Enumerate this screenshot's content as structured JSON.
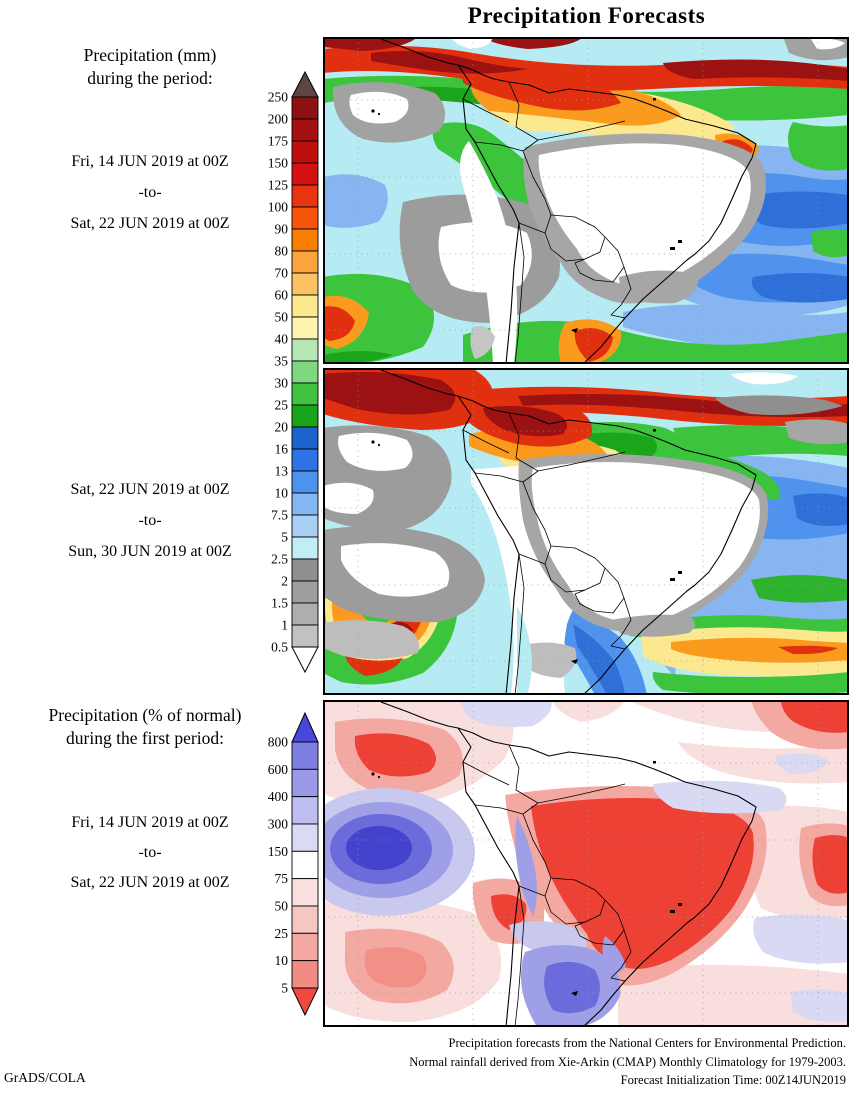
{
  "title": "Precipitation Forecasts",
  "left_column": {
    "period1": {
      "heading1": "Precipitation (mm)",
      "heading2": "during the period:",
      "date_from": "Fri, 14 JUN 2019 at 00Z",
      "separator": "-to-",
      "date_to": "Sat, 22 JUN 2019 at 00Z"
    },
    "period2": {
      "date_from": "Sat, 22 JUN 2019 at 00Z",
      "separator": "-to-",
      "date_to": "Sun, 30 JUN 2019 at 00Z"
    },
    "period3": {
      "heading1": "Precipitation (% of normal)",
      "heading2": "during the first period:",
      "date_from": "Fri, 14 JUN 2019 at 00Z",
      "separator": "-to-",
      "date_to": "Sat, 22 JUN 2019 at 00Z"
    }
  },
  "colorbar_mm": {
    "unit": "mm",
    "labels": [
      "250",
      "200",
      "175",
      "150",
      "125",
      "100",
      "90",
      "80",
      "70",
      "60",
      "50",
      "40",
      "35",
      "30",
      "25",
      "20",
      "16",
      "13",
      "10",
      "7.5",
      "5",
      "2.5",
      "2",
      "1.5",
      "1",
      "0.5"
    ],
    "segment_colors": [
      "#8e1111",
      "#a51010",
      "#bf0e0e",
      "#d31111",
      "#e8340f",
      "#f5540a",
      "#fa7f00",
      "#fba33c",
      "#fcc364",
      "#fce88e",
      "#fdf5ad",
      "#b6e7b2",
      "#7fd87f",
      "#41c341",
      "#18a418",
      "#1d63cd",
      "#2e72e8",
      "#4e92f0",
      "#84b6f2",
      "#a9d0f4",
      "#c1edf6",
      "#8f8f8f",
      "#9e9e9e",
      "#aeaeae",
      "#c1c1c1"
    ],
    "above_color": "#5e4545",
    "below_color": "#ffffff"
  },
  "colorbar_pct": {
    "unit": "% of normal",
    "labels": [
      "800",
      "600",
      "400",
      "300",
      "150",
      "75",
      "50",
      "25",
      "10",
      "5"
    ],
    "segment_colors": [
      "#7d7de2",
      "#9a9ae8",
      "#bdbdf0",
      "#dadaf5",
      "#ffffff",
      "#fae1df",
      "#f6c6c2",
      "#f3a8a2",
      "#f18b84"
    ],
    "above_color": "#4747de",
    "below_color": "#f04a3e"
  },
  "footer": {
    "line1": "Precipitation forecasts from the National Centers for Environmental Prediction.",
    "line2": "Normal rainfall derived from Xie-Arkin (CMAP) Monthly Climatology for 1979-2003.",
    "line3": "Forecast Initialization Time: 00Z14JUN2019",
    "credit": "GrADS/COLA"
  }
}
